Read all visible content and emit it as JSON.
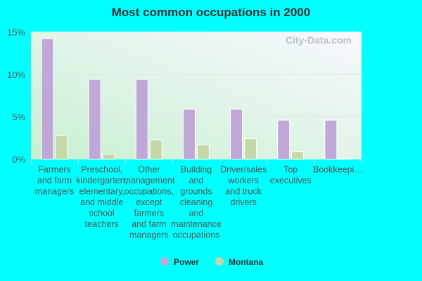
{
  "watermark": "City-Data.com",
  "chart_data": {
    "type": "bar",
    "title": "Most common occupations in 2000",
    "categories": [
      "Farmers and farm managers",
      "Preschool, kindergarten, elementary, and middle school teachers",
      "Other management occupations, except farmers and farm managers",
      "Building and grounds cleaning and maintenance occupations",
      "Driver/sales workers and truck drivers",
      "Top executives",
      "Bookkeepi…"
    ],
    "category_lines": [
      [
        "Farmers",
        "and farm",
        "managers"
      ],
      [
        "Preschool,",
        "kindergarten,",
        "elementary,",
        "and middle",
        "school",
        "teachers"
      ],
      [
        "Other",
        "management",
        "occupations,",
        "except",
        "farmers",
        "and farm",
        "managers"
      ],
      [
        "Building",
        "and",
        "grounds",
        "cleaning",
        "and",
        "maintenance",
        "occupations"
      ],
      [
        "Driver/sales",
        "workers",
        "and truck",
        "drivers"
      ],
      [
        "Top",
        "executives"
      ],
      [
        "Bookkeepi…"
      ]
    ],
    "series": [
      {
        "name": "Power",
        "color": "#bfa8d8",
        "values": [
          14.2,
          9.4,
          9.4,
          5.9,
          5.9,
          4.6,
          4.6
        ]
      },
      {
        "name": "Montana",
        "color": "#c5d9a8",
        "values": [
          2.8,
          0.6,
          2.3,
          1.7,
          2.4,
          0.9,
          0.1
        ]
      }
    ],
    "yticks": [
      "0%",
      "5%",
      "10%",
      "15%"
    ],
    "ylim": [
      0,
      15
    ],
    "grid": true,
    "legend": "bottom"
  }
}
